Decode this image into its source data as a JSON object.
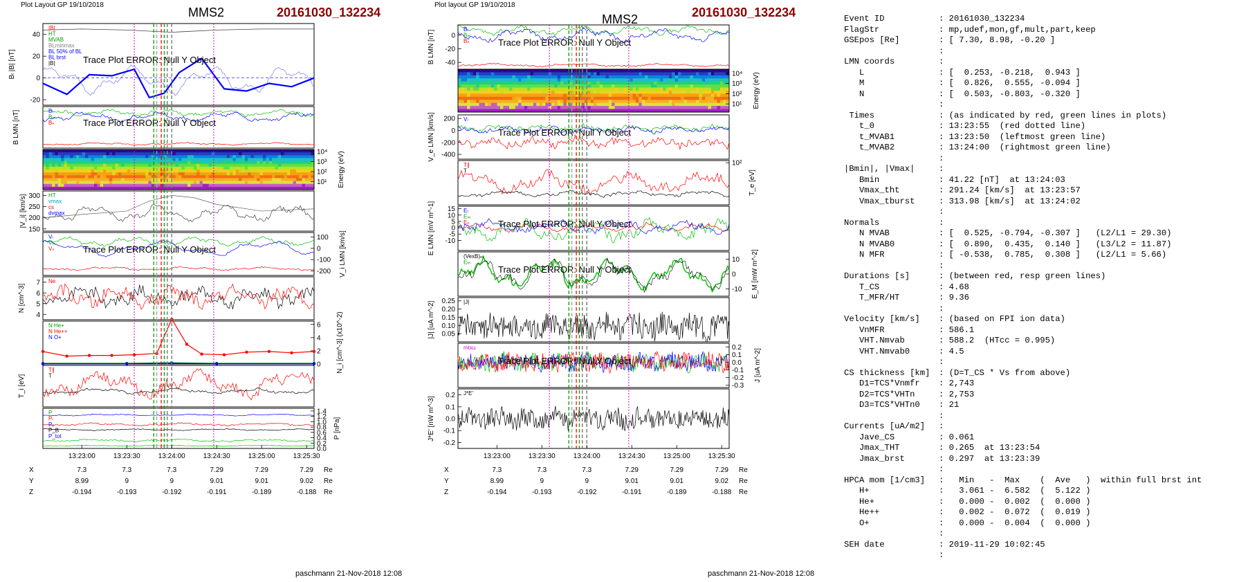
{
  "left_plot": {
    "header": "Plot Layout GP 19/10/2018",
    "title": "MMS2",
    "event": "20161030_132234",
    "footer": "paschmann 21-Nov-2018 12:08",
    "trace_error": "Trace Plot ERROR: Null Y Object",
    "panel_ylabels": [
      "B_L,|B| [nT]",
      "B_LMN [nT]",
      "Energy (eV)",
      "|V_i| [km/s]",
      "V_i LMN [km/s]",
      "N [cm^-3]",
      "N_i [cm^-3] (x10^-2)",
      "T_i [eV]",
      "P [nPa]"
    ]
  },
  "right_plot": {
    "header": "Plot layout GP 19/10/2018",
    "title": "MMS2",
    "event": "20161030_132234",
    "footer": "paschmann 21-Nov-2018 12:08",
    "trace_error": "Trace Plot ERROR: Null Y Object",
    "panel_ylabels": [
      "B_LMN [nT]",
      "Energy (eV)",
      "V_e LMN [km/s]",
      "T_e [eV]",
      "E_LMN [mV m^-1]",
      "E_M [mW m^-2]",
      "|J| [uA m^-2]",
      "J [uA m^-2]",
      "J*E' [nW m^-3]"
    ]
  },
  "time_ticks": [
    "13:23:00",
    "13:23:30",
    "13:24:00",
    "13:24:30",
    "13:25:00",
    "13:25:30"
  ],
  "position_table": {
    "rows": [
      {
        "label": "X",
        "values": [
          "7.3",
          "7.3",
          "7.3",
          "7.29",
          "7.29",
          "7.29"
        ],
        "unit": "Re"
      },
      {
        "label": "Y",
        "values": [
          "8.99",
          "9",
          "9",
          "9.01",
          "9.01",
          "9.02"
        ],
        "unit": "Re"
      },
      {
        "label": "Z",
        "values": [
          "-0.194",
          "-0.193",
          "-0.192",
          "-0.191",
          "-0.189",
          "-0.188"
        ],
        "unit": "Re"
      }
    ]
  },
  "chart_data": [
    {
      "type": "line",
      "title": "MMS2",
      "panel": "left-1",
      "ylabel": "B_L |B| [nT]",
      "ylim": [
        -25,
        50
      ],
      "yticks": [
        "40",
        "20",
        "0",
        "-20"
      ],
      "legend": [
        "|B|",
        "B_L",
        "MVAB",
        "BLminmax",
        "BL 50% of BL",
        "BL brst"
      ],
      "series": [
        {
          "name": "B_L",
          "color": "#0000ff",
          "x": [
            "13:22:34",
            "13:22:50",
            "13:23:05",
            "13:23:20",
            "13:23:35",
            "13:23:45",
            "13:23:55",
            "13:24:05",
            "13:24:20",
            "13:24:35",
            "13:24:50",
            "13:25:05",
            "13:25:20",
            "13:25:35"
          ],
          "values": [
            -5,
            -15,
            3,
            2,
            8,
            -18,
            -14,
            5,
            18,
            -10,
            -12,
            -5,
            -8,
            0
          ]
        },
        {
          "name": "|B|",
          "color": "#404040",
          "x": [
            "13:22:34",
            "13:23:00",
            "13:23:30",
            "13:24:00",
            "13:24:30",
            "13:25:00",
            "13:25:35"
          ],
          "values": [
            44,
            45,
            44,
            42,
            44,
            45,
            45
          ]
        }
      ]
    },
    {
      "type": "line",
      "panel": "left-4",
      "ylabel": "|V_i| [km/s]",
      "ylim": [
        140,
        320
      ],
      "yticks": [
        "300",
        "250",
        "200",
        "150"
      ],
      "legend": [
        "HT",
        "Vmax",
        "cs",
        "dVmax"
      ],
      "series": [
        {
          "name": "|V_i|",
          "color": "#404040",
          "x": [
            "13:22:34",
            "13:23:00",
            "13:23:30",
            "13:23:45",
            "13:24:00",
            "13:24:15",
            "13:24:30",
            "13:25:00",
            "13:25:35"
          ],
          "values": [
            200,
            215,
            230,
            275,
            300,
            290,
            260,
            230,
            240
          ]
        }
      ]
    },
    {
      "type": "line",
      "panel": "left-7",
      "ylabel": "N_i [cm^-3] (x10^-2)",
      "ylim": [
        0,
        6
      ],
      "yticks": [
        "6",
        "4",
        "2",
        "0"
      ],
      "legend": [
        "N He+",
        "N He++",
        "N O+"
      ],
      "series": [
        {
          "name": "N He++",
          "color": "#ff0000",
          "x": [
            "13:22:34",
            "13:22:50",
            "13:23:05",
            "13:23:20",
            "13:23:35",
            "13:23:50",
            "13:24:00",
            "13:24:10",
            "13:24:20",
            "13:24:35",
            "13:24:50",
            "13:25:05",
            "13:25:20",
            "13:25:35"
          ],
          "values": [
            1.9,
            1.2,
            1.3,
            1.3,
            1.4,
            1.6,
            6.8,
            3.0,
            1.5,
            1.4,
            1.8,
            1.9,
            1.7,
            1.9
          ]
        },
        {
          "name": "N He+",
          "color": "#00a000",
          "x": [
            "13:22:34",
            "13:23:30",
            "13:24:00",
            "13:24:30",
            "13:25:35"
          ],
          "values": [
            0.1,
            0.1,
            0.2,
            0.1,
            0.1
          ]
        },
        {
          "name": "N O+",
          "color": "#0000ff",
          "x": [
            "13:22:34",
            "13:23:30",
            "13:24:00",
            "13:24:30",
            "13:25:35"
          ],
          "values": [
            0.05,
            0.05,
            0.1,
            0.05,
            0.05
          ]
        }
      ]
    }
  ],
  "info_panel": {
    "lines": [
      {
        "k": "Event ID",
        "v": "20161030_132234"
      },
      {
        "k": "FlagStr",
        "v": "mp,udef,mon,gf,mult,part,keep"
      },
      {
        "k": "GSEpos [Re]",
        "v": "[ 7.30, 8.98, -0.20 ]"
      },
      {
        "k": "",
        "v": ""
      },
      {
        "k": "LMN coords",
        "v": ""
      },
      {
        "k": "   L",
        "v": "[  0.253, -0.218,  0.943 ]"
      },
      {
        "k": "   M",
        "v": "[  0.826,  0.555, -0.094 ]"
      },
      {
        "k": "   N",
        "v": "[  0.503, -0.803, -0.320 ]"
      },
      {
        "k": "",
        "v": ""
      },
      {
        "k": " Times",
        "v": "(as indicated by red, green lines in plots)"
      },
      {
        "k": "   t_0",
        "v": "13:23:55  (red dotted line)"
      },
      {
        "k": "   t_MVAB1",
        "v": "13:23:50  (leftmost green line)"
      },
      {
        "k": "   t_MVAB2",
        "v": "13:24:00  (rightmost green line)"
      },
      {
        "k": "",
        "v": ""
      },
      {
        "k": "|Bmin|, |Vmax|",
        "v": ""
      },
      {
        "k": "   Bmin",
        "v": "41.22 [nT]  at 13:24:03"
      },
      {
        "k": "   Vmax_tht",
        "v": "291.24 [km/s]  at 13:23:57"
      },
      {
        "k": "   Vmax_tburst",
        "v": "313.98 [km/s]  at 13:24:02"
      },
      {
        "k": "",
        "v": ""
      },
      {
        "k": "Normals",
        "v": ""
      },
      {
        "k": "   N MVAB",
        "v": "[  0.525, -0.794, -0.307 ]   (L2/L1 = 29.30)"
      },
      {
        "k": "   N MVAB0",
        "v": "[  0.890,  0.435,  0.140 ]   (L3/L2 = 11.87)"
      },
      {
        "k": "   N MFR",
        "v": "[ -0.538,  0.785,  0.308 ]   (L2/L1 = 5.66)"
      },
      {
        "k": "",
        "v": ""
      },
      {
        "k": "Durations [s]",
        "v": "(between red, resp green lines)"
      },
      {
        "k": "   T_CS",
        "v": "4.68"
      },
      {
        "k": "   T_MFR/HT",
        "v": "9.36"
      },
      {
        "k": "",
        "v": ""
      },
      {
        "k": "Velocity [km/s]",
        "v": "(based on FPI ion data)"
      },
      {
        "k": "   VnMFR",
        "v": "586.1"
      },
      {
        "k": "   VHT.Nmvab",
        "v": "588.2  (HTcc = 0.995)"
      },
      {
        "k": "   VHT.Nmvab0",
        "v": "4.5"
      },
      {
        "k": "",
        "v": ""
      },
      {
        "k": "CS thickness [km]",
        "v": "(D=T_CS * Vs from above)"
      },
      {
        "k": "   D1=TCS*Vnmfr",
        "v": "2,743"
      },
      {
        "k": "   D2=TCS*VHTn",
        "v": "2,753"
      },
      {
        "k": "   D3=TCS*VHTn0",
        "v": "21"
      },
      {
        "k": "",
        "v": ""
      },
      {
        "k": "Currents [uA/m2]",
        "v": ""
      },
      {
        "k": "   Jave_CS",
        "v": "0.061"
      },
      {
        "k": "   Jmax_THT",
        "v": "0.265  at 13:23:54"
      },
      {
        "k": "   Jmax_brst",
        "v": "0.297  at 13:23:39"
      },
      {
        "k": "",
        "v": ""
      },
      {
        "k": "HPCA mom [1/cm3]",
        "v": "  Min   -  Max    (  Ave   )  within full brst int"
      },
      {
        "k": "   H+",
        "v": "  3.061 -  6.582  (  5.122 )"
      },
      {
        "k": "   He+",
        "v": "  0.000 -  0.002  (  0.000 )"
      },
      {
        "k": "   He++",
        "v": "  0.002 -  0.072  (  0.019 )"
      },
      {
        "k": "   O+",
        "v": "  0.000 -  0.004  (  0.000 )"
      },
      {
        "k": "",
        "v": ""
      },
      {
        "k": "SEH date",
        "v": "2019-11-29 10:02:45"
      },
      {
        "k": "",
        "v": ""
      }
    ]
  }
}
